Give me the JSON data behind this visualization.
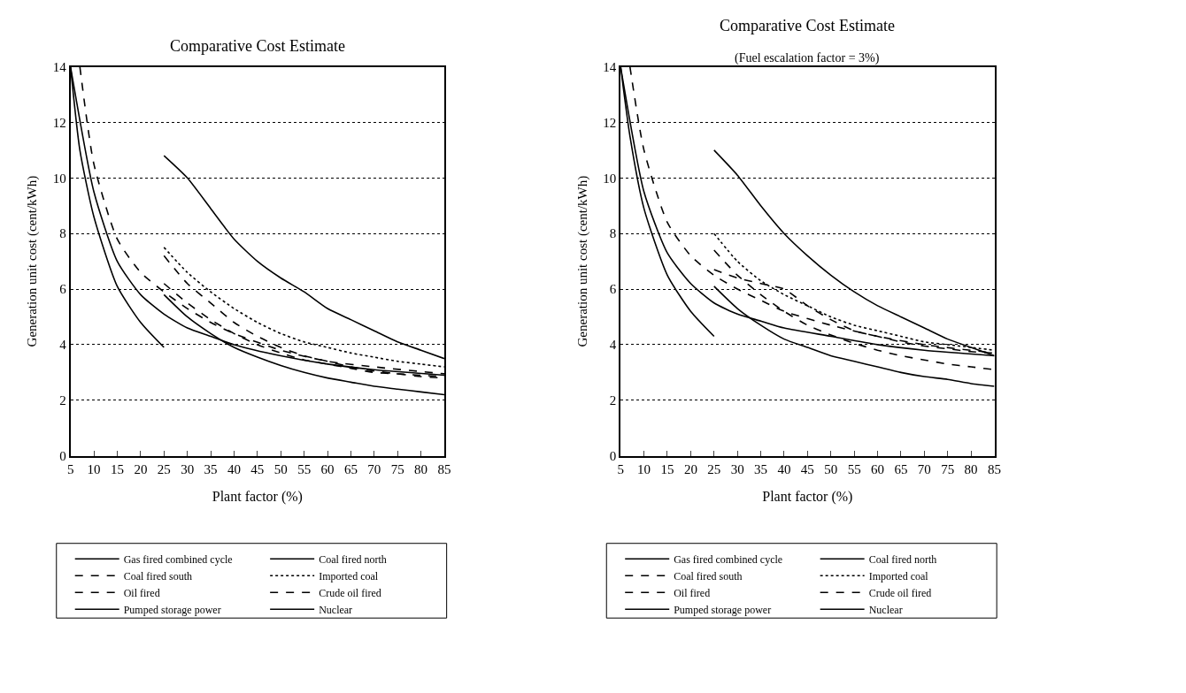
{
  "chart_data": [
    {
      "type": "line",
      "title": "Comparative Cost Estimate",
      "xlabel": "Plant factor (%)",
      "ylabel": "Generation unit cost (cent/kWh)",
      "xlim": [
        5,
        85
      ],
      "xticks": [
        5,
        10,
        15,
        20,
        25,
        30,
        35,
        40,
        45,
        50,
        55,
        60,
        65,
        70,
        75,
        80,
        85
      ],
      "ylim": [
        0,
        14
      ],
      "yticks": [
        0,
        2,
        4,
        6,
        8,
        10,
        12,
        14
      ],
      "grid": "y",
      "legend": "bottom",
      "marker": "none",
      "series": [
        {
          "name": "Gas fired combined cycle",
          "color": "#000000",
          "line_style": "solid",
          "x": [
            5,
            10,
            15,
            20,
            25,
            30,
            35,
            40,
            50,
            60,
            70,
            85
          ],
          "values": [
            14,
            9.5,
            7.0,
            5.8,
            5.1,
            4.6,
            4.3,
            4.0,
            3.6,
            3.3,
            3.1,
            2.9
          ]
        },
        {
          "name": "Coal fired north",
          "color": "#000000",
          "line_style": "solid",
          "x": [
            25,
            30,
            35,
            40,
            45,
            50,
            55,
            60,
            65,
            70,
            75,
            80,
            85
          ],
          "values": [
            5.8,
            5.0,
            4.4,
            3.9,
            3.55,
            3.25,
            3.0,
            2.8,
            2.65,
            2.5,
            2.4,
            2.3,
            2.2
          ]
        },
        {
          "name": "Coal fired south",
          "color": "#000000",
          "line_style": "dashed",
          "x": [
            25,
            30,
            35,
            40,
            45,
            50,
            55,
            60,
            65,
            70,
            75,
            80,
            85
          ],
          "values": [
            7.2,
            6.2,
            5.5,
            4.8,
            4.3,
            3.9,
            3.6,
            3.4,
            3.2,
            3.05,
            2.95,
            2.85,
            2.8
          ]
        },
        {
          "name": "Imported coal",
          "color": "#000000",
          "line_style": "dotted",
          "x": [
            25,
            30,
            35,
            40,
            45,
            50,
            55,
            60,
            65,
            70,
            75,
            80,
            85
          ],
          "values": [
            7.5,
            6.6,
            5.9,
            5.3,
            4.8,
            4.4,
            4.1,
            3.9,
            3.7,
            3.55,
            3.4,
            3.3,
            3.2
          ]
        },
        {
          "name": "Oil fired",
          "color": "#000000",
          "line_style": "dashed",
          "x": [
            7,
            10,
            15,
            20,
            25,
            30,
            35,
            40,
            50,
            60,
            70,
            85
          ],
          "values": [
            14,
            10.5,
            7.8,
            6.6,
            5.9,
            5.3,
            4.8,
            4.4,
            3.8,
            3.4,
            3.2,
            2.95
          ]
        },
        {
          "name": "Crude oil fired",
          "color": "#000000",
          "line_style": "dashed",
          "x": [
            25,
            30,
            35,
            40,
            45,
            50,
            55,
            60,
            65,
            70,
            75,
            80,
            85
          ],
          "values": [
            6.2,
            5.5,
            4.9,
            4.4,
            4.0,
            3.7,
            3.45,
            3.3,
            3.15,
            3.0,
            2.95,
            2.9,
            2.85
          ]
        },
        {
          "name": "Pumped storage power",
          "color": "#000000",
          "line_style": "solid",
          "x": [
            5,
            7,
            10,
            15,
            20,
            25
          ],
          "values": [
            14,
            11,
            8.6,
            6.1,
            4.8,
            3.9
          ]
        },
        {
          "name": "Nuclear",
          "color": "#000000",
          "line_style": "solid",
          "x": [
            25,
            30,
            35,
            40,
            45,
            50,
            55,
            60,
            65,
            70,
            75,
            80,
            85
          ],
          "values": [
            10.8,
            10.0,
            8.9,
            7.8,
            7.0,
            6.4,
            5.9,
            5.3,
            4.9,
            4.5,
            4.1,
            3.8,
            3.5
          ]
        }
      ]
    },
    {
      "type": "line",
      "title": "Comparative Cost Estimate",
      "subtitle": "(Fuel escalation factor = 3%)",
      "xlabel": "Plant factor (%)",
      "ylabel": "Generation unit cost (cent/kWh)",
      "xlim": [
        5,
        85
      ],
      "xticks": [
        5,
        10,
        15,
        20,
        25,
        30,
        35,
        40,
        45,
        50,
        55,
        60,
        65,
        70,
        75,
        80,
        85
      ],
      "ylim": [
        0,
        14
      ],
      "yticks": [
        0,
        2,
        4,
        6,
        8,
        10,
        12,
        14
      ],
      "grid": "y",
      "legend": "bottom",
      "marker": "none",
      "series": [
        {
          "name": "Gas fired combined cycle",
          "color": "#000000",
          "line_style": "solid",
          "x": [
            5,
            10,
            15,
            20,
            25,
            30,
            35,
            40,
            50,
            60,
            70,
            85
          ],
          "values": [
            14,
            9.5,
            7.3,
            6.2,
            5.5,
            5.1,
            4.85,
            4.6,
            4.3,
            4.0,
            3.8,
            3.6
          ]
        },
        {
          "name": "Coal fired north",
          "color": "#000000",
          "line_style": "solid",
          "x": [
            25,
            30,
            35,
            40,
            45,
            50,
            55,
            60,
            65,
            70,
            75,
            80,
            85
          ],
          "values": [
            6.1,
            5.3,
            4.7,
            4.2,
            3.9,
            3.6,
            3.4,
            3.2,
            3.0,
            2.85,
            2.75,
            2.6,
            2.5
          ]
        },
        {
          "name": "Coal fired south",
          "color": "#000000",
          "line_style": "dashed",
          "x": [
            25,
            30,
            35,
            40,
            45,
            50,
            55,
            60,
            65,
            70,
            75,
            80,
            85
          ],
          "values": [
            7.4,
            6.5,
            5.8,
            5.2,
            4.7,
            4.35,
            4.05,
            3.8,
            3.6,
            3.45,
            3.3,
            3.2,
            3.1
          ]
        },
        {
          "name": "Imported coal",
          "color": "#000000",
          "line_style": "dotted",
          "x": [
            25,
            30,
            35,
            40,
            45,
            50,
            55,
            60,
            65,
            70,
            75,
            80,
            85
          ],
          "values": [
            8.0,
            7.0,
            6.3,
            5.8,
            5.4,
            5.0,
            4.7,
            4.5,
            4.3,
            4.1,
            4.0,
            3.9,
            3.8
          ]
        },
        {
          "name": "Oil fired",
          "color": "#000000",
          "line_style": "dashed",
          "x": [
            7,
            10,
            15,
            20,
            25,
            30,
            35,
            40,
            50,
            60,
            70,
            85
          ],
          "values": [
            14,
            11.0,
            8.4,
            7.2,
            6.5,
            6.0,
            5.6,
            5.2,
            4.7,
            4.3,
            4.0,
            3.7
          ]
        },
        {
          "name": "Crude oil fired",
          "color": "#000000",
          "line_style": "dashed",
          "x": [
            25,
            30,
            35,
            40,
            45,
            50,
            55,
            60,
            65,
            70,
            75,
            80,
            85
          ],
          "values": [
            6.7,
            6.4,
            6.2,
            6.0,
            5.4,
            4.9,
            4.5,
            4.3,
            4.1,
            3.95,
            3.85,
            3.75,
            3.7
          ]
        },
        {
          "name": "Pumped storage power",
          "color": "#000000",
          "line_style": "solid",
          "x": [
            5,
            7,
            10,
            15,
            20,
            25
          ],
          "values": [
            14,
            11.5,
            8.9,
            6.5,
            5.2,
            4.3
          ]
        },
        {
          "name": "Nuclear",
          "color": "#000000",
          "line_style": "solid",
          "x": [
            25,
            30,
            35,
            40,
            45,
            50,
            55,
            60,
            65,
            70,
            75,
            80,
            85
          ],
          "values": [
            11.0,
            10.1,
            9.0,
            8.0,
            7.2,
            6.5,
            5.9,
            5.4,
            5.0,
            4.6,
            4.2,
            3.9,
            3.6
          ]
        }
      ]
    }
  ]
}
